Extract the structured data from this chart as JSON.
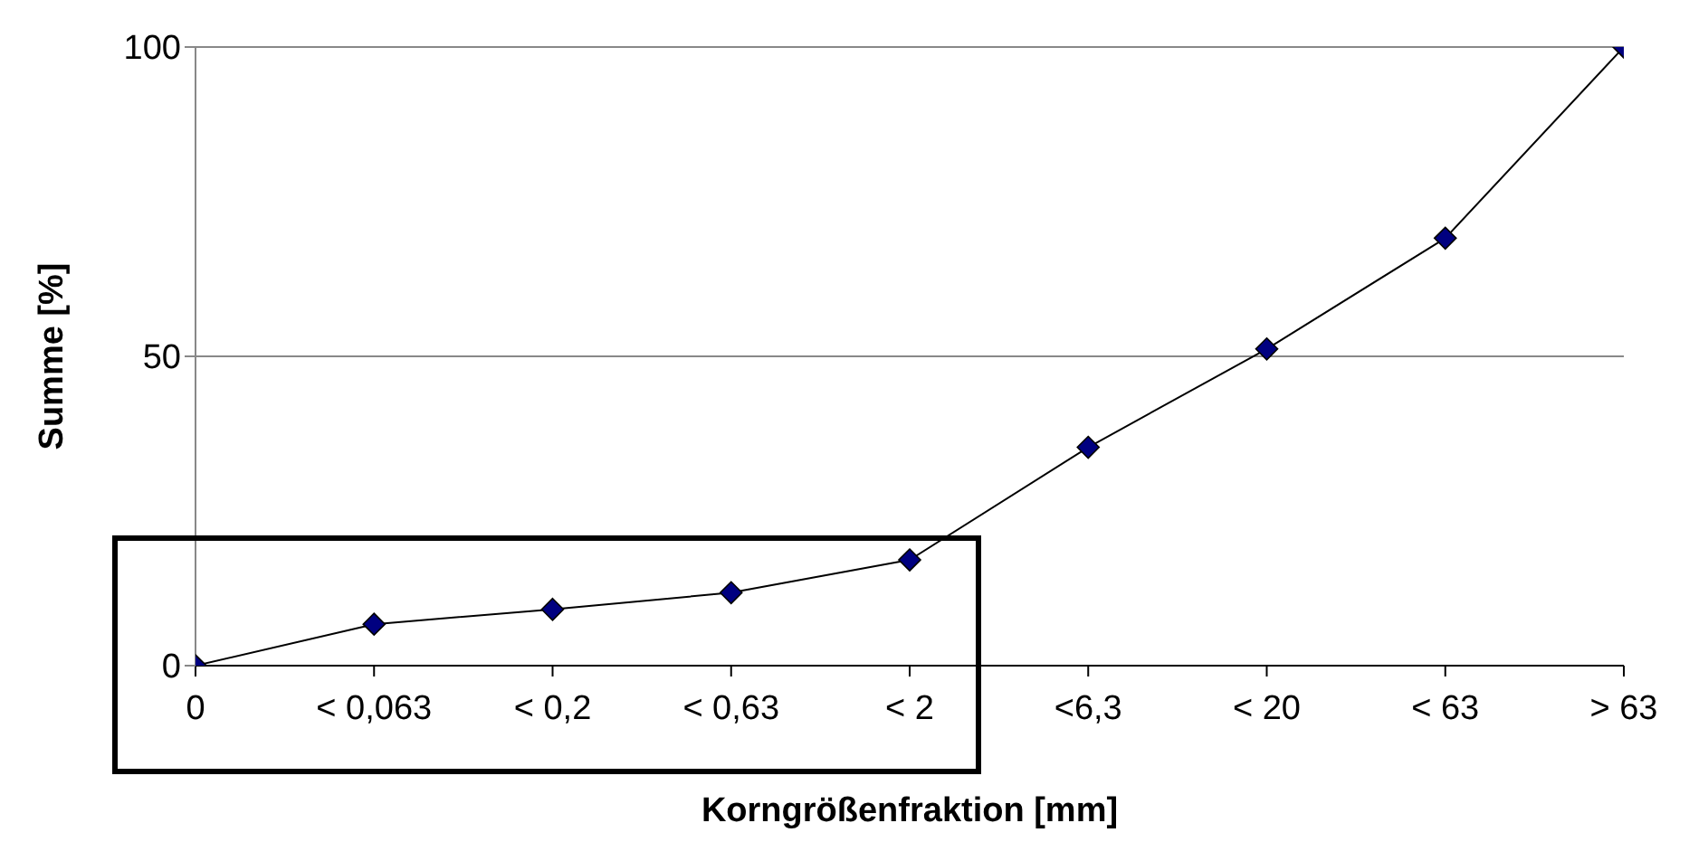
{
  "chart_data": {
    "type": "line",
    "xlabel": "Korngrößenfraktion [mm]",
    "ylabel": "Summe [%]",
    "categories": [
      "0",
      "< 0,063",
      "< 0,2",
      "< 0,63",
      "< 2",
      "<6,3",
      "< 20",
      "< 63",
      "> 63"
    ],
    "series": [
      {
        "color": "#000080",
        "values": [
          0,
          6.7,
          9.1,
          11.8,
          17.1,
          35.3,
          51.2,
          69.1,
          100
        ]
      }
    ],
    "ylim": [
      0,
      100
    ],
    "yticks": [
      0,
      50,
      100
    ],
    "grid": "y",
    "marker": "diamond",
    "line_style": "solid"
  }
}
